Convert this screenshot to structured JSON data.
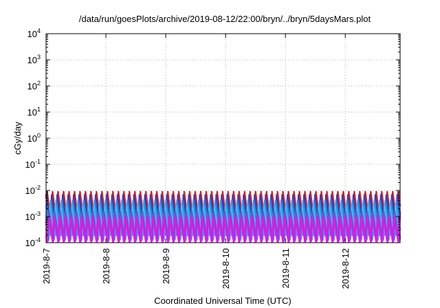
{
  "chart_data": {
    "type": "line",
    "title": "/data/run/goesPlots/archive/2019-08-12/22:00/bryn/../bryn/5daysMars.plot",
    "xlabel": "Coordinated Universal Time (UTC)",
    "ylabel": "cGy/day",
    "x_ticks": [
      "2019-8-7",
      "2019-8-8",
      "2019-8-9",
      "2019-8-10",
      "2019-8-11",
      "2019-8-12"
    ],
    "xlim": [
      "2019-08-07T00:00",
      "2019-08-12T22:00"
    ],
    "y_scale": "log",
    "ylim": [
      0.0001,
      10000
    ],
    "y_ticks": [
      {
        "value": 0.0001,
        "base": "10",
        "exp": "-4"
      },
      {
        "value": 0.001,
        "base": "10",
        "exp": "-3"
      },
      {
        "value": 0.01,
        "base": "10",
        "exp": "-2"
      },
      {
        "value": 0.1,
        "base": "10",
        "exp": "-1"
      },
      {
        "value": 1,
        "base": "10",
        "exp": "0"
      },
      {
        "value": 10,
        "base": "10",
        "exp": "1"
      },
      {
        "value": 100,
        "base": "10",
        "exp": "2"
      },
      {
        "value": 1000,
        "base": "10",
        "exp": "3"
      },
      {
        "value": 10000,
        "base": "10",
        "exp": "4"
      }
    ],
    "grid": true,
    "legend": "none",
    "sawtooth_period_hours": 2.2,
    "series": [
      {
        "color": "#e41a1c",
        "peak": 0.0095,
        "trough": 0.00045,
        "phase_hours": 0.0
      },
      {
        "color": "#2f3fbf",
        "peak": 0.0072,
        "trough": 0.00028,
        "phase_hours": 0.35
      },
      {
        "color": "#1e90ff",
        "peak": 0.0045,
        "trough": 0.00018,
        "phase_hours": 0.7
      },
      {
        "color": "#33c3e0",
        "peak": 0.0028,
        "trough": 0.00013,
        "phase_hours": 1.05
      },
      {
        "color": "#7a4fc9",
        "peak": 0.0016,
        "trough": 0.00011,
        "phase_hours": 1.4
      },
      {
        "color": "#ee10ee",
        "peak": 0.0011,
        "trough": 0.0001,
        "phase_hours": 1.75
      }
    ]
  }
}
